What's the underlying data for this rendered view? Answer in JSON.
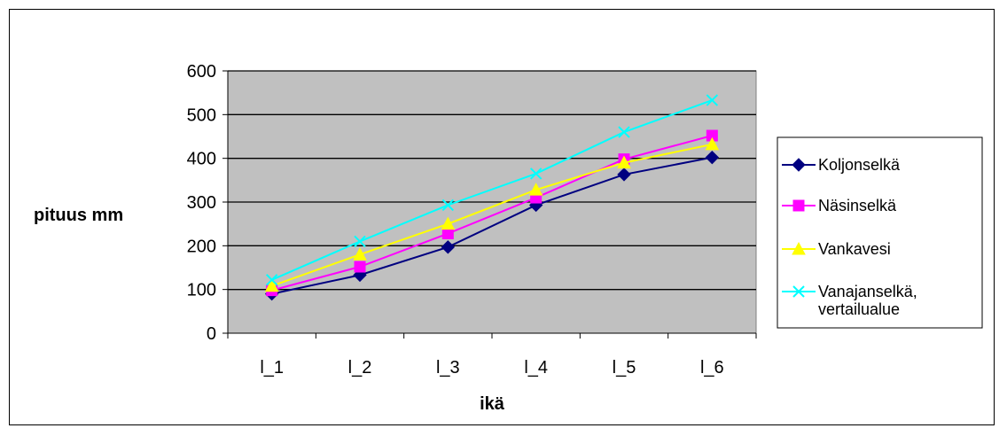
{
  "chart_data": {
    "type": "line",
    "title": "",
    "xlabel": "ikä",
    "ylabel": "pituus mm",
    "categories": [
      "l_1",
      "l_2",
      "l_3",
      "l_4",
      "l_5",
      "l_6"
    ],
    "ylim": [
      0,
      600
    ],
    "yticks": [
      0,
      100,
      200,
      300,
      400,
      500,
      600
    ],
    "grid": true,
    "legend_position": "right",
    "plot_background": "#c0c0c0",
    "series": [
      {
        "name": "Koljonselkä",
        "color": "#000080",
        "marker": "diamond",
        "values": [
          90,
          133,
          197,
          293,
          363,
          402
        ]
      },
      {
        "name": "Näsinselkä",
        "color": "#ff00ff",
        "marker": "square",
        "values": [
          98,
          152,
          228,
          310,
          398,
          452
        ]
      },
      {
        "name": "Vankavesi",
        "color": "#ffff00",
        "marker": "triangle",
        "values": [
          108,
          180,
          250,
          328,
          390,
          432
        ]
      },
      {
        "name": "Vanajanselkä, vertailualue",
        "name_lines": [
          "Vanajanselkä,",
          "vertailualue"
        ],
        "color": "#00ffff",
        "marker": "x",
        "values": [
          122,
          210,
          293,
          365,
          460,
          533
        ]
      }
    ]
  }
}
